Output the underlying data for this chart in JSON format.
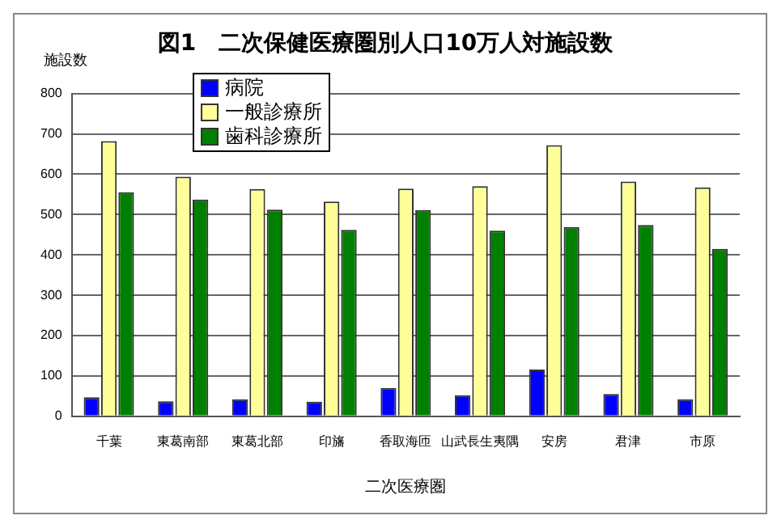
{
  "chart_data": {
    "type": "bar",
    "title": "図1　二次保健医療圏別人口10万人対施設数",
    "xlabel": "二次医療圏",
    "ylabel": "施設数",
    "categories": [
      "千葉",
      "東葛南部",
      "東葛北部",
      "印旛",
      "香取海匝",
      "山武長生夷隅",
      "安房",
      "君津",
      "市原"
    ],
    "series": [
      {
        "name": "病院",
        "color": "#0000ff",
        "values": [
          47,
          37,
          42,
          36,
          70,
          52,
          116,
          55,
          42
        ]
      },
      {
        "name": "一般診療所",
        "color": "#ffff99",
        "values": [
          682,
          594,
          563,
          532,
          564,
          570,
          672,
          582,
          567
        ]
      },
      {
        "name": "歯科診療所",
        "color": "#008000",
        "values": [
          555,
          537,
          512,
          462,
          511,
          460,
          469,
          474,
          415
        ]
      }
    ],
    "ylim": [
      0,
      800
    ],
    "yticks": [
      0,
      100,
      200,
      300,
      400,
      500,
      600,
      700,
      800
    ],
    "grid": "y",
    "legend": "top left"
  }
}
